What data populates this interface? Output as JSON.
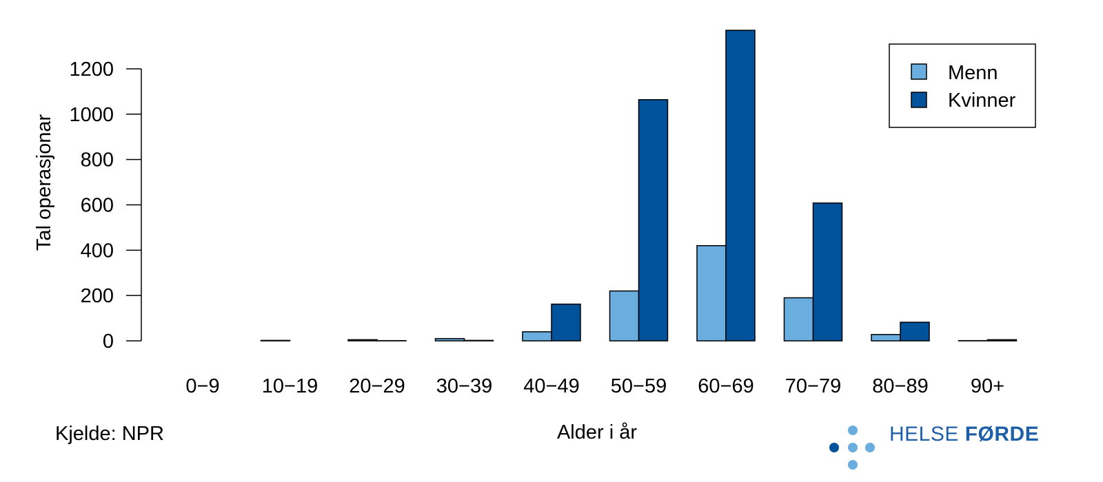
{
  "chart_data": {
    "type": "bar",
    "categories": [
      "0−9",
      "10−19",
      "20−29",
      "30−39",
      "40−49",
      "50−59",
      "60−69",
      "70−79",
      "80−89",
      "90+"
    ],
    "series": [
      {
        "name": "Menn",
        "color": "#6aaee0",
        "values": [
          0,
          2,
          5,
          10,
          40,
          220,
          420,
          190,
          28,
          1
        ]
      },
      {
        "name": "Kvinner",
        "color": "#00529b",
        "values": [
          0,
          0,
          1,
          2,
          162,
          1064,
          1370,
          608,
          82,
          5
        ]
      }
    ],
    "xlabel": "Alder i år",
    "ylabel": "Tal operasjonar",
    "ylim": [
      0,
      1370
    ],
    "yticks": [
      0,
      200,
      400,
      600,
      800,
      1000,
      1200
    ],
    "grid": false,
    "legend_position": "top-right"
  },
  "source_note": "Kjelde: NPR",
  "logo": {
    "text_regular": "HELSE ",
    "text_bold": "FØRDE",
    "color": "#1f5fa8",
    "dot_color_dark": "#00529b",
    "dot_color_light": "#6aaee0"
  }
}
